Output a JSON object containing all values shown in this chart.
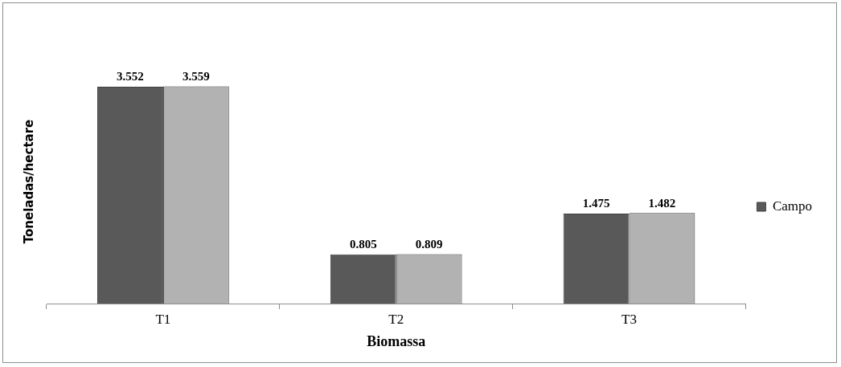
{
  "chart_data": {
    "type": "bar",
    "xlabel": "Biomassa",
    "ylabel": "Toneladas/hectare",
    "categories": [
      "T1",
      "T2",
      "T3"
    ],
    "series": [
      {
        "name": "Campo",
        "color": "#595959",
        "values": [
          3.552,
          0.805,
          1.475
        ]
      },
      {
        "color": "#b2b2b2",
        "values": [
          3.559,
          0.809,
          1.482
        ]
      }
    ],
    "data_labels": true,
    "legend": "right",
    "grid": false
  }
}
